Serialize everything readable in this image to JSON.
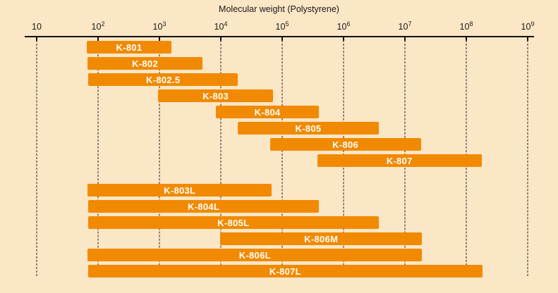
{
  "chart_data": {
    "type": "bar",
    "orientation": "horizontal-range",
    "scale": "log10",
    "title": "Molecular weight (Polystyrene)",
    "xlabel": "Molecular weight (Polystyrene)",
    "ylabel": "",
    "grid": "vertical-dashed-per-decade",
    "legend": "none",
    "x_axis": {
      "min": 10,
      "max": 1000000000,
      "min_exp": 1,
      "max_exp": 9,
      "tick_base": "10",
      "tick_exponents": [
        "",
        "2",
        "3",
        "4",
        "5",
        "6",
        "7",
        "8",
        "9"
      ]
    },
    "series": [
      {
        "name": "K-801",
        "group": 1,
        "row": 0,
        "range": [
          65,
          1500
        ],
        "log_range": [
          1.82,
          3.19
        ]
      },
      {
        "name": "K-802",
        "group": 1,
        "row": 1,
        "range": [
          65,
          5000
        ],
        "log_range": [
          1.83,
          3.7
        ]
      },
      {
        "name": "K-802.5",
        "group": 1,
        "row": 2,
        "range": [
          70,
          20000
        ],
        "log_range": [
          1.84,
          4.28
        ]
      },
      {
        "name": "K-803",
        "group": 1,
        "row": 3,
        "range": [
          1000,
          70000
        ],
        "log_range": [
          2.98,
          4.85
        ]
      },
      {
        "name": "K-804",
        "group": 1,
        "row": 4,
        "range": [
          9000,
          400000
        ],
        "log_range": [
          3.92,
          5.6
        ]
      },
      {
        "name": "K-805",
        "group": 1,
        "row": 5,
        "range": [
          20000,
          4000000
        ],
        "log_range": [
          4.28,
          6.57
        ]
      },
      {
        "name": "K-806",
        "group": 1,
        "row": 6,
        "range": [
          65000,
          20000000
        ],
        "log_range": [
          4.8,
          7.26
        ]
      },
      {
        "name": "K-807",
        "group": 1,
        "row": 7,
        "range": [
          400000,
          200000000
        ],
        "log_range": [
          5.57,
          8.25
        ]
      },
      {
        "name": "K-803L",
        "group": 2,
        "row": 0,
        "range": [
          65,
          70000
        ],
        "log_range": [
          1.83,
          4.83
        ]
      },
      {
        "name": "K-804L",
        "group": 2,
        "row": 1,
        "range": [
          70,
          400000
        ],
        "log_range": [
          1.84,
          5.6
        ]
      },
      {
        "name": "K-805L",
        "group": 2,
        "row": 2,
        "range": [
          70,
          4000000
        ],
        "log_range": [
          1.84,
          6.57
        ]
      },
      {
        "name": "K-806M",
        "group": 2,
        "row": 3,
        "range": [
          10000,
          20000000
        ],
        "log_range": [
          3.99,
          7.28
        ]
      },
      {
        "name": "K-806L",
        "group": 2,
        "row": 4,
        "range": [
          65,
          20000000
        ],
        "log_range": [
          1.83,
          7.28
        ]
      },
      {
        "name": "K-807L",
        "group": 2,
        "row": 5,
        "range": [
          70,
          200000000
        ],
        "log_range": [
          1.84,
          8.26
        ]
      }
    ],
    "colors": {
      "background": "#FBE6C5",
      "bar": "#F18A00",
      "bar_label": "#FFFFFF",
      "axis": "#111111",
      "grid": "#222222",
      "text": "#1A1A1A"
    }
  }
}
